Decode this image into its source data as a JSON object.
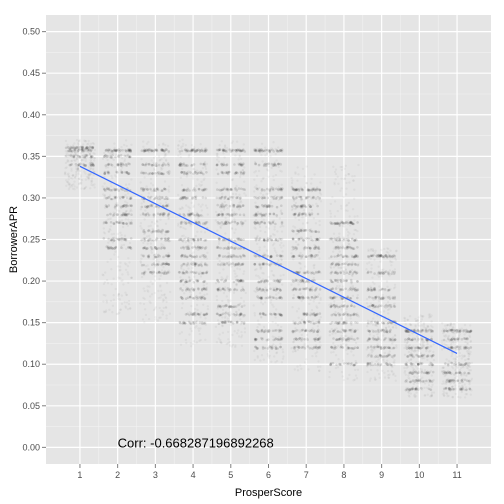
{
  "chart_data": {
    "type": "scatter",
    "title": "",
    "xlabel": "ProsperScore",
    "ylabel": "BorrowerAPR",
    "xlim": [
      0.1,
      11.9
    ],
    "ylim": [
      -0.02,
      0.52
    ],
    "x_ticks": [
      1,
      2,
      3,
      4,
      5,
      6,
      7,
      8,
      9,
      10,
      11
    ],
    "y_ticks": [
      0.0,
      0.05,
      0.1,
      0.15,
      0.2,
      0.25,
      0.3,
      0.35,
      0.4,
      0.45,
      0.5
    ],
    "x_tick_labels": [
      "1",
      "2",
      "3",
      "4",
      "5",
      "6",
      "7",
      "8",
      "9",
      "10",
      "11"
    ],
    "y_tick_labels": [
      "0.00",
      "0.05",
      "0.10",
      "0.15",
      "0.20",
      "0.25",
      "0.30",
      "0.35",
      "0.40",
      "0.45",
      "0.50"
    ],
    "grid": true,
    "background": "#e5e5e5",
    "point_color": "#000000",
    "regression_line": {
      "color": "#3366ff",
      "x": [
        1,
        11
      ],
      "y": [
        0.338,
        0.113
      ]
    },
    "score_groups": [
      {
        "x": 1,
        "range": [
          0.31,
          0.37
        ],
        "bands": [
          0.36,
          0.357,
          0.35,
          0.34
        ]
      },
      {
        "x": 2,
        "range": [
          0.16,
          0.37
        ],
        "bands": [
          0.357,
          0.35,
          0.34,
          0.33,
          0.31,
          0.3,
          0.29,
          0.28,
          0.27,
          0.25,
          0.24
        ]
      },
      {
        "x": 3,
        "range": [
          0.15,
          0.37
        ],
        "bands": [
          0.357,
          0.34,
          0.33,
          0.31,
          0.3,
          0.29,
          0.28,
          0.26,
          0.25,
          0.24,
          0.23,
          0.22,
          0.21
        ]
      },
      {
        "x": 4,
        "range": [
          0.12,
          0.37
        ],
        "bands": [
          0.357,
          0.34,
          0.33,
          0.31,
          0.3,
          0.28,
          0.27,
          0.25,
          0.24,
          0.23,
          0.22,
          0.21,
          0.2,
          0.19,
          0.18,
          0.16,
          0.15
        ]
      },
      {
        "x": 5,
        "range": [
          0.12,
          0.37
        ],
        "bands": [
          0.357,
          0.34,
          0.33,
          0.31,
          0.3,
          0.29,
          0.28,
          0.27,
          0.25,
          0.24,
          0.23,
          0.22,
          0.2,
          0.19,
          0.17,
          0.16,
          0.15
        ]
      },
      {
        "x": 6,
        "range": [
          0.1,
          0.37
        ],
        "bands": [
          0.357,
          0.34,
          0.31,
          0.3,
          0.29,
          0.28,
          0.27,
          0.25,
          0.23,
          0.22,
          0.2,
          0.19,
          0.18,
          0.16,
          0.14,
          0.13,
          0.12
        ]
      },
      {
        "x": 7,
        "range": [
          0.09,
          0.34
        ],
        "bands": [
          0.31,
          0.3,
          0.29,
          0.28,
          0.26,
          0.25,
          0.24,
          0.23,
          0.21,
          0.2,
          0.19,
          0.18,
          0.16,
          0.15,
          0.14,
          0.13,
          0.12
        ]
      },
      {
        "x": 8,
        "range": [
          0.08,
          0.34
        ],
        "bands": [
          0.27,
          0.25,
          0.24,
          0.23,
          0.22,
          0.21,
          0.2,
          0.19,
          0.18,
          0.17,
          0.16,
          0.15,
          0.14,
          0.13,
          0.12,
          0.1
        ]
      },
      {
        "x": 9,
        "range": [
          0.08,
          0.24
        ],
        "bands": [
          0.23,
          0.21,
          0.19,
          0.18,
          0.17,
          0.15,
          0.14,
          0.13,
          0.12,
          0.11,
          0.1
        ]
      },
      {
        "x": 10,
        "range": [
          0.06,
          0.16
        ],
        "bands": [
          0.14,
          0.13,
          0.12,
          0.11,
          0.1,
          0.09,
          0.08,
          0.07
        ]
      },
      {
        "x": 11,
        "range": [
          0.06,
          0.15
        ],
        "bands": [
          0.14,
          0.13,
          0.12,
          0.1,
          0.09,
          0.08,
          0.07
        ]
      }
    ],
    "annotation": {
      "text": "Corr: -0.668287196892268",
      "x": 2.0,
      "y": 0.0
    }
  }
}
